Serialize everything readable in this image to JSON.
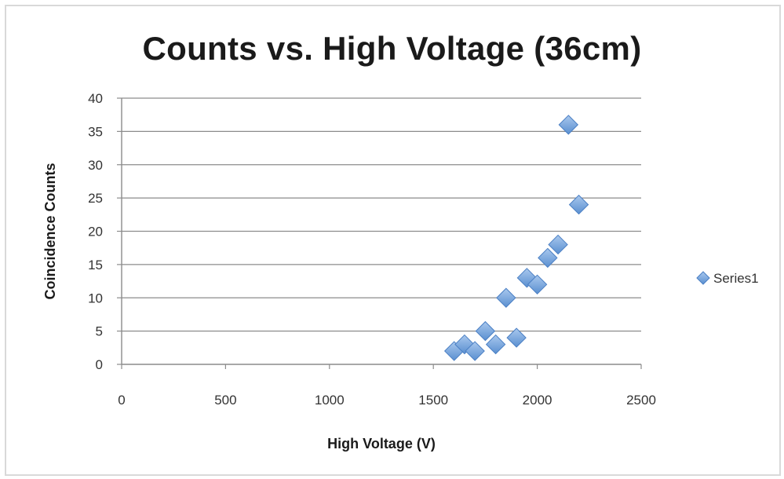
{
  "chart_data": {
    "type": "scatter",
    "title": "Counts vs. High Voltage (36cm)",
    "xlabel": "High Voltage (V)",
    "ylabel": "Coincidence Counts",
    "xlim": [
      0,
      2500
    ],
    "ylim": [
      0,
      40
    ],
    "x_ticks": [
      0,
      500,
      1000,
      1500,
      2000,
      2500
    ],
    "y_ticks": [
      0,
      5,
      10,
      15,
      20,
      25,
      30,
      35,
      40
    ],
    "grid": "horizontal",
    "legend_position": "right",
    "series": [
      {
        "name": "Series1",
        "color": "#6f9fd8",
        "marker": "diamond",
        "points": [
          {
            "x": 1600,
            "y": 2
          },
          {
            "x": 1650,
            "y": 3
          },
          {
            "x": 1700,
            "y": 2
          },
          {
            "x": 1750,
            "y": 5
          },
          {
            "x": 1800,
            "y": 3
          },
          {
            "x": 1850,
            "y": 10
          },
          {
            "x": 1900,
            "y": 4
          },
          {
            "x": 1950,
            "y": 13
          },
          {
            "x": 2000,
            "y": 12
          },
          {
            "x": 2050,
            "y": 16
          },
          {
            "x": 2100,
            "y": 18
          },
          {
            "x": 2150,
            "y": 36
          },
          {
            "x": 2200,
            "y": 24
          }
        ]
      }
    ]
  }
}
